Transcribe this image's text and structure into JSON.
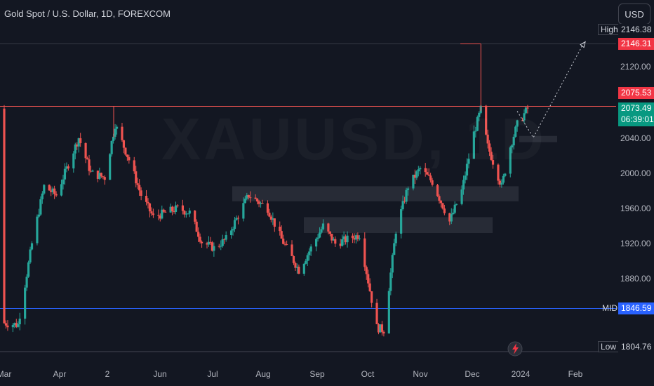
{
  "header": {
    "symbol_title": "Gold Spot / U.S. Dollar, 1D, FOREXCOM",
    "currency_button": "USD"
  },
  "watermark": "XAUUSD, 1D",
  "colors": {
    "background": "#131722",
    "bullish": "#26a69a",
    "bearish": "#ef5350",
    "resistance_line": "#ef5350",
    "mid_line": "#2962ff",
    "zone": "#2a2e39"
  },
  "price_axis": {
    "ticks": [
      "2120.00",
      "2040.00",
      "2000.00",
      "1960.00",
      "1920.00",
      "1880.00"
    ],
    "high_tag": "High",
    "high_value": "2146.38",
    "target_label": "2146.31",
    "resistance_label": "2075.53",
    "current_price": "2073.49",
    "countdown": "06:39:01",
    "mid_tag": "MID",
    "mid_label": "1846.59",
    "low_tag": "Low",
    "low_value": "1804.76"
  },
  "time_axis": {
    "ticks": [
      "Mar",
      "Apr",
      "2",
      "Jun",
      "Jul",
      "Aug",
      "Sep",
      "Oct",
      "Nov",
      "Dec",
      "2024",
      "Feb"
    ]
  },
  "icons": {
    "alert": "lightning-icon"
  },
  "chart_data": {
    "type": "candlestick",
    "symbol": "XAUUSD",
    "interval": "1D",
    "ylim": [
      1790,
      2175
    ],
    "close_path": [
      [
        "2023-03-01",
        1830
      ],
      [
        "2023-03-09",
        1828
      ],
      [
        "2023-03-17",
        1920
      ],
      [
        "2023-03-24",
        1985
      ],
      [
        "2023-03-31",
        1975
      ],
      [
        "2023-04-13",
        2040
      ],
      [
        "2023-04-20",
        2000
      ],
      [
        "2023-04-28",
        1995
      ],
      [
        "2023-05-04",
        2055
      ],
      [
        "2023-05-12",
        2015
      ],
      [
        "2023-05-19",
        1975
      ],
      [
        "2023-05-26",
        1950
      ],
      [
        "2023-06-02",
        1955
      ],
      [
        "2023-06-09",
        1960
      ],
      [
        "2023-06-16",
        1955
      ],
      [
        "2023-06-23",
        1922
      ],
      [
        "2023-06-30",
        1915
      ],
      [
        "2023-07-07",
        1925
      ],
      [
        "2023-07-20",
        1975
      ],
      [
        "2023-07-31",
        1960
      ],
      [
        "2023-08-08",
        1925
      ],
      [
        "2023-08-18",
        1890
      ],
      [
        "2023-08-25",
        1915
      ],
      [
        "2023-09-01",
        1940
      ],
      [
        "2023-09-08",
        1920
      ],
      [
        "2023-09-15",
        1925
      ],
      [
        "2023-09-22",
        1930
      ],
      [
        "2023-10-02",
        1825
      ],
      [
        "2023-10-06",
        1822
      ],
      [
        "2023-10-13",
        1935
      ],
      [
        "2023-10-20",
        1985
      ],
      [
        "2023-10-27",
        2005
      ],
      [
        "2023-11-03",
        1990
      ],
      [
        "2023-11-13",
        1945
      ],
      [
        "2023-11-20",
        1980
      ],
      [
        "2023-11-27",
        2045
      ],
      [
        "2023-12-01",
        2072
      ],
      [
        "2023-12-05",
        2030
      ],
      [
        "2023-12-13",
        1985
      ],
      [
        "2023-12-18",
        2030
      ],
      [
        "2023-12-22",
        2055
      ],
      [
        "2023-12-28",
        2073
      ]
    ],
    "resistance_level": 2075.53,
    "target_level": 2146.31,
    "mid_level": 1846.59,
    "low_level": 1804.76,
    "zones": [
      {
        "price_low": 1968,
        "price_high": 1985
      },
      {
        "price_low": 1932,
        "price_high": 1950
      },
      {
        "price_low": 2035,
        "price_high": 2042
      }
    ],
    "projection": [
      [
        "2023-12-28",
        2040
      ],
      [
        "2024-01-25",
        2146.31
      ]
    ]
  }
}
